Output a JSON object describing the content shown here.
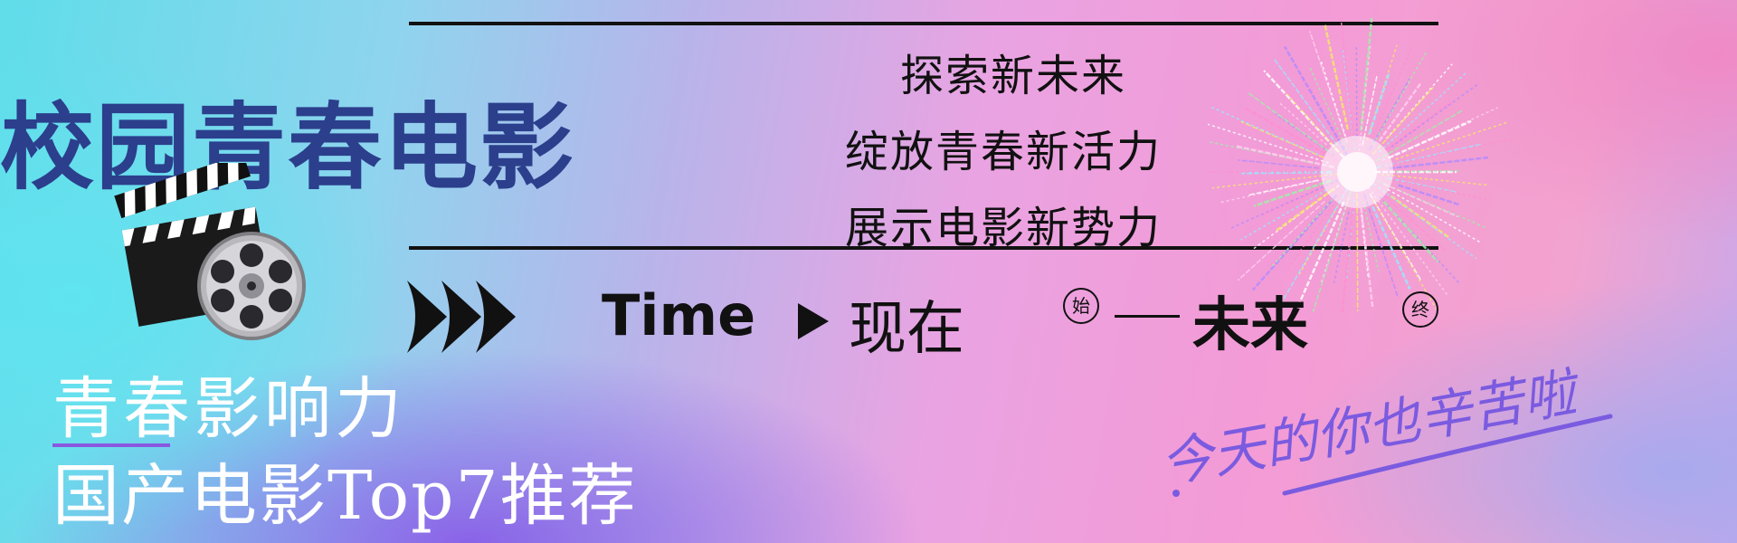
{
  "banner": {
    "title": "校园青春电影",
    "slogans": [
      "探索新未来",
      "绽放青春新活力",
      "展示电影新势力"
    ],
    "timeline": {
      "label": "Time",
      "now": "现在",
      "start_mark": "始",
      "end_mark": "终",
      "future": "未来"
    },
    "subtitle1": "青春影响力",
    "subtitle2": "国产电影Top7推荐",
    "handwriting": "今天的你也辛苦啦"
  },
  "colors": {
    "title": "#2b3f8c",
    "text_dark": "#111111",
    "subtitle": "#ffffff",
    "handwriting": "#7a5be0",
    "accent_line": "#8a58e0"
  },
  "icons": [
    "film-clapperboard-icon",
    "film-reel-icon",
    "triple-arrow-icon",
    "play-triangle-icon",
    "fireworks-graphic"
  ]
}
